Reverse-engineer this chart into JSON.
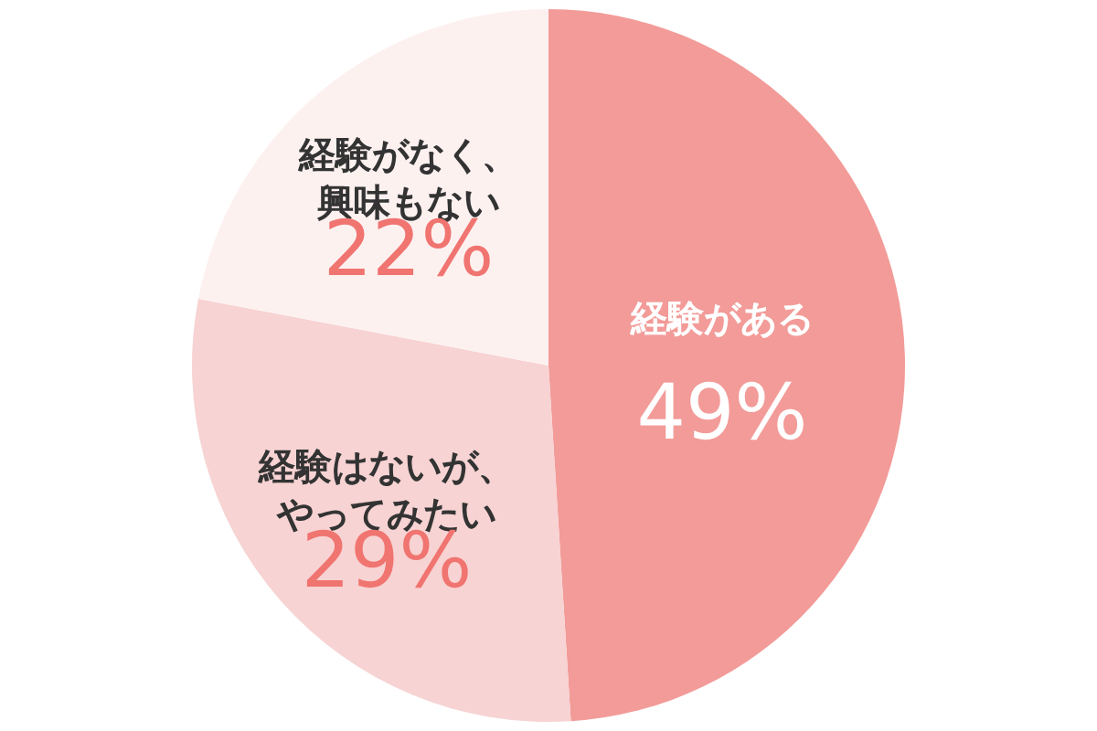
{
  "chart_data": {
    "type": "pie",
    "categories": [
      "経験がある",
      "経験はないが、やってみたい",
      "経験がなく、興味もない"
    ],
    "values": [
      49,
      29,
      22
    ],
    "colors": [
      "#f29b98",
      "#f7d3d3",
      "#fdf1f0"
    ],
    "value_labels": [
      "49%",
      "29%",
      "22%"
    ]
  }
}
